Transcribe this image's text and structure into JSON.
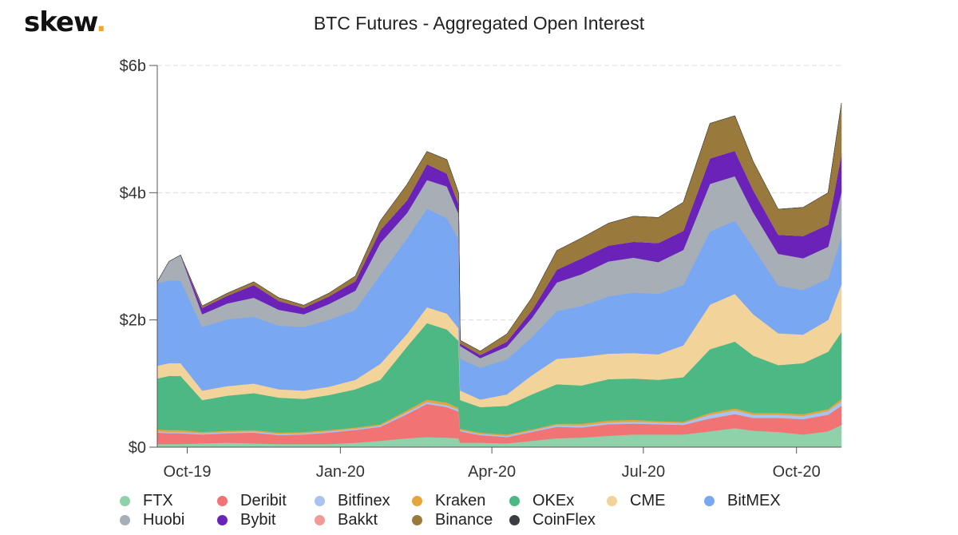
{
  "logo": {
    "text": "skew",
    "dot": "."
  },
  "chart_data": {
    "type": "area",
    "stacked": true,
    "title": "BTC Futures - Aggregated Open Interest",
    "y_ticks": [
      "$0",
      "$2b",
      "$4b",
      "$6b"
    ],
    "ylim": [
      0,
      6
    ],
    "y_unit": "billion USD",
    "x_ticks": [
      {
        "label": "Oct-19",
        "date": "2019-10-01"
      },
      {
        "label": "Jan-20",
        "date": "2020-01-01"
      },
      {
        "label": "Apr-20",
        "date": "2020-04-01"
      },
      {
        "label": "Jul-20",
        "date": "2020-07-01"
      },
      {
        "label": "Oct-20",
        "date": "2020-10-01"
      }
    ],
    "grid": "horizontal dashed",
    "legend_position": "bottom",
    "x": [
      "2019-09-13",
      "2019-09-20",
      "2019-09-27",
      "2019-10-10",
      "2019-10-25",
      "2019-11-10",
      "2019-11-25",
      "2019-12-10",
      "2019-12-25",
      "2020-01-10",
      "2020-01-25",
      "2020-02-10",
      "2020-02-22",
      "2020-03-05",
      "2020-03-12",
      "2020-03-13",
      "2020-03-25",
      "2020-04-10",
      "2020-04-25",
      "2020-05-10",
      "2020-05-25",
      "2020-06-10",
      "2020-06-25",
      "2020-07-10",
      "2020-07-25",
      "2020-08-10",
      "2020-08-25",
      "2020-09-05",
      "2020-09-20",
      "2020-10-05",
      "2020-10-20",
      "2020-10-28"
    ],
    "series": [
      {
        "name": "FTX",
        "color": "#8fd1a9",
        "values": [
          0.05,
          0.05,
          0.05,
          0.06,
          0.07,
          0.06,
          0.05,
          0.05,
          0.05,
          0.07,
          0.1,
          0.14,
          0.16,
          0.15,
          0.14,
          0.07,
          0.07,
          0.06,
          0.1,
          0.14,
          0.15,
          0.18,
          0.2,
          0.2,
          0.2,
          0.25,
          0.3,
          0.26,
          0.24,
          0.2,
          0.25,
          0.35
        ]
      },
      {
        "name": "Deribit",
        "color": "#f27373",
        "values": [
          0.18,
          0.17,
          0.17,
          0.14,
          0.15,
          0.17,
          0.14,
          0.15,
          0.18,
          0.2,
          0.22,
          0.38,
          0.52,
          0.48,
          0.42,
          0.18,
          0.12,
          0.1,
          0.14,
          0.18,
          0.16,
          0.18,
          0.17,
          0.16,
          0.15,
          0.2,
          0.22,
          0.2,
          0.22,
          0.24,
          0.26,
          0.3
        ]
      },
      {
        "name": "Bitfinex",
        "color": "#a6c3f2",
        "values": [
          0.02,
          0.02,
          0.02,
          0.02,
          0.02,
          0.02,
          0.02,
          0.02,
          0.02,
          0.02,
          0.02,
          0.03,
          0.03,
          0.03,
          0.03,
          0.02,
          0.02,
          0.02,
          0.02,
          0.03,
          0.03,
          0.03,
          0.03,
          0.03,
          0.03,
          0.06,
          0.06,
          0.05,
          0.05,
          0.05,
          0.06,
          0.07
        ]
      },
      {
        "name": "Kraken",
        "color": "#e5a53a",
        "values": [
          0.03,
          0.03,
          0.03,
          0.02,
          0.02,
          0.02,
          0.02,
          0.02,
          0.02,
          0.02,
          0.02,
          0.03,
          0.04,
          0.04,
          0.03,
          0.02,
          0.02,
          0.02,
          0.02,
          0.02,
          0.03,
          0.03,
          0.03,
          0.02,
          0.02,
          0.03,
          0.03,
          0.03,
          0.03,
          0.03,
          0.03,
          0.04
        ]
      },
      {
        "name": "OKEx",
        "color": "#4cb884",
        "values": [
          0.8,
          0.85,
          0.85,
          0.5,
          0.55,
          0.58,
          0.55,
          0.52,
          0.55,
          0.6,
          0.7,
          1.0,
          1.2,
          1.15,
          1.05,
          0.45,
          0.4,
          0.45,
          0.55,
          0.62,
          0.6,
          0.65,
          0.65,
          0.65,
          0.7,
          1.0,
          1.05,
          0.9,
          0.75,
          0.8,
          0.9,
          1.05
        ]
      },
      {
        "name": "CME",
        "color": "#f2d49b",
        "values": [
          0.2,
          0.2,
          0.2,
          0.15,
          0.15,
          0.15,
          0.13,
          0.13,
          0.13,
          0.15,
          0.25,
          0.2,
          0.25,
          0.25,
          0.2,
          0.15,
          0.12,
          0.18,
          0.3,
          0.4,
          0.45,
          0.4,
          0.4,
          0.4,
          0.5,
          0.7,
          0.75,
          0.65,
          0.5,
          0.45,
          0.5,
          0.75
        ]
      },
      {
        "name": "BitMEX",
        "color": "#7aa7f2",
        "values": [
          1.3,
          1.3,
          1.3,
          1.0,
          1.05,
          1.05,
          1.0,
          1.0,
          1.05,
          1.1,
          1.4,
          1.5,
          1.55,
          1.5,
          1.4,
          0.5,
          0.5,
          0.55,
          0.6,
          0.75,
          0.8,
          0.9,
          0.95,
          0.95,
          0.95,
          1.15,
          1.15,
          1.05,
          0.75,
          0.7,
          0.65,
          0.75
        ]
      },
      {
        "name": "Huobi",
        "color": "#a7aeb5",
        "values": [
          0.02,
          0.3,
          0.4,
          0.2,
          0.25,
          0.3,
          0.25,
          0.2,
          0.25,
          0.3,
          0.5,
          0.4,
          0.45,
          0.5,
          0.4,
          0.2,
          0.15,
          0.2,
          0.3,
          0.45,
          0.5,
          0.55,
          0.55,
          0.5,
          0.55,
          0.75,
          0.7,
          0.55,
          0.5,
          0.5,
          0.5,
          0.7
        ]
      },
      {
        "name": "Bybit",
        "color": "#6a22b8",
        "values": [
          0.0,
          0.0,
          0.0,
          0.1,
          0.12,
          0.2,
          0.14,
          0.1,
          0.12,
          0.15,
          0.2,
          0.2,
          0.25,
          0.2,
          0.15,
          0.04,
          0.05,
          0.08,
          0.12,
          0.2,
          0.25,
          0.25,
          0.25,
          0.3,
          0.3,
          0.4,
          0.4,
          0.35,
          0.3,
          0.35,
          0.35,
          0.6
        ]
      },
      {
        "name": "Bakkt",
        "color": "#f29a9a",
        "values": [
          0,
          0,
          0,
          0,
          0,
          0,
          0,
          0,
          0,
          0,
          0,
          0,
          0,
          0,
          0,
          0,
          0,
          0,
          0,
          0,
          0,
          0,
          0,
          0,
          0,
          0,
          0,
          0,
          0,
          0,
          0,
          0
        ]
      },
      {
        "name": "Binance",
        "color": "#9a7a3c",
        "values": [
          0.0,
          0.0,
          0.0,
          0.03,
          0.04,
          0.05,
          0.05,
          0.04,
          0.05,
          0.08,
          0.15,
          0.25,
          0.2,
          0.22,
          0.18,
          0.05,
          0.06,
          0.12,
          0.2,
          0.3,
          0.32,
          0.35,
          0.4,
          0.4,
          0.45,
          0.55,
          0.55,
          0.45,
          0.4,
          0.45,
          0.5,
          0.8
        ]
      },
      {
        "name": "CoinFlex",
        "color": "#3a3d42",
        "values": [
          0,
          0,
          0,
          0,
          0,
          0,
          0,
          0,
          0,
          0,
          0,
          0,
          0,
          0,
          0,
          0,
          0,
          0,
          0,
          0,
          0,
          0,
          0,
          0,
          0,
          0,
          0,
          0,
          0,
          0,
          0,
          0
        ]
      }
    ]
  }
}
